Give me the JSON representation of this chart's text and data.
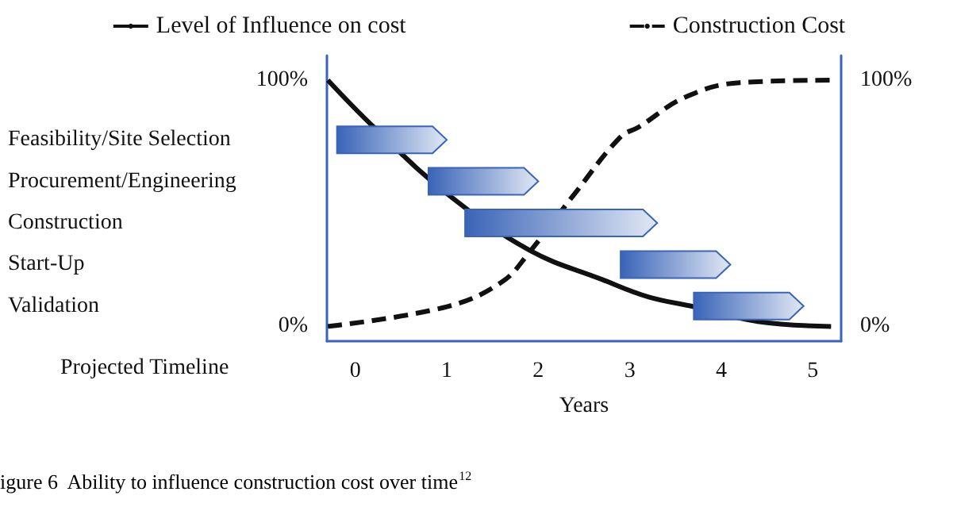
{
  "chart_data": [
    {
      "type": "line",
      "xlabel": "Years",
      "annotations": [
        "Projected Timeline",
        "igure 6  Ability to influence construction cost over time$^{12}$"
      ],
      "xlim": [
        -0.31,
        5.31
      ],
      "xticks": [
        0,
        1,
        2,
        3,
        4,
        5
      ],
      "ylim": [
        -6,
        110
      ],
      "yticks": [
        {
          "value": 0,
          "label": "0%"
        },
        {
          "value": 100,
          "label": "100%"
        }
      ],
      "y2lim": [
        -6,
        110
      ],
      "y2ticks": [
        {
          "value": 0,
          "label": "0%"
        },
        {
          "value": 100,
          "label": "100%"
        }
      ],
      "legend": "top",
      "grid": false,
      "marker": "none",
      "series": [
        {
          "name": "Level of Influence on cost",
          "color": "#111111",
          "line_style": "solid",
          "x": [
            -0.3,
            0.2,
            1.0,
            1.9,
            2.7,
            3.2,
            3.7,
            4.4,
            5.2
          ],
          "values": [
            100,
            81,
            54,
            31,
            19,
            12,
            8,
            2,
            0
          ]
        },
        {
          "name": "Construction Cost",
          "color": "#111111",
          "line_style": "dashed",
          "x": [
            -0.3,
            1.0,
            1.6,
            1.9,
            2.4,
            2.9,
            3.1,
            3.6,
            4.2,
            5.2
          ],
          "values": [
            0,
            8,
            18,
            30,
            54,
            77,
            81,
            93,
            99,
            100
          ]
        }
      ]
    },
    {
      "type": "bar",
      "orientation": "horizontal",
      "xlim": [
        -0.31,
        5.31
      ],
      "xticks": [
        0,
        1,
        2,
        3,
        4,
        5
      ],
      "tick_labels": "y",
      "color": "#3a64b8",
      "categories": [
        "Feasibility/Site Selection",
        "Procurement/Engineering",
        "Construction",
        "Start-Up",
        "Validation"
      ],
      "base": [
        -0.2,
        0.8,
        1.2,
        2.9,
        3.7
      ],
      "values": [
        1.2,
        1.2,
        2.1,
        1.2,
        1.2
      ]
    }
  ]
}
